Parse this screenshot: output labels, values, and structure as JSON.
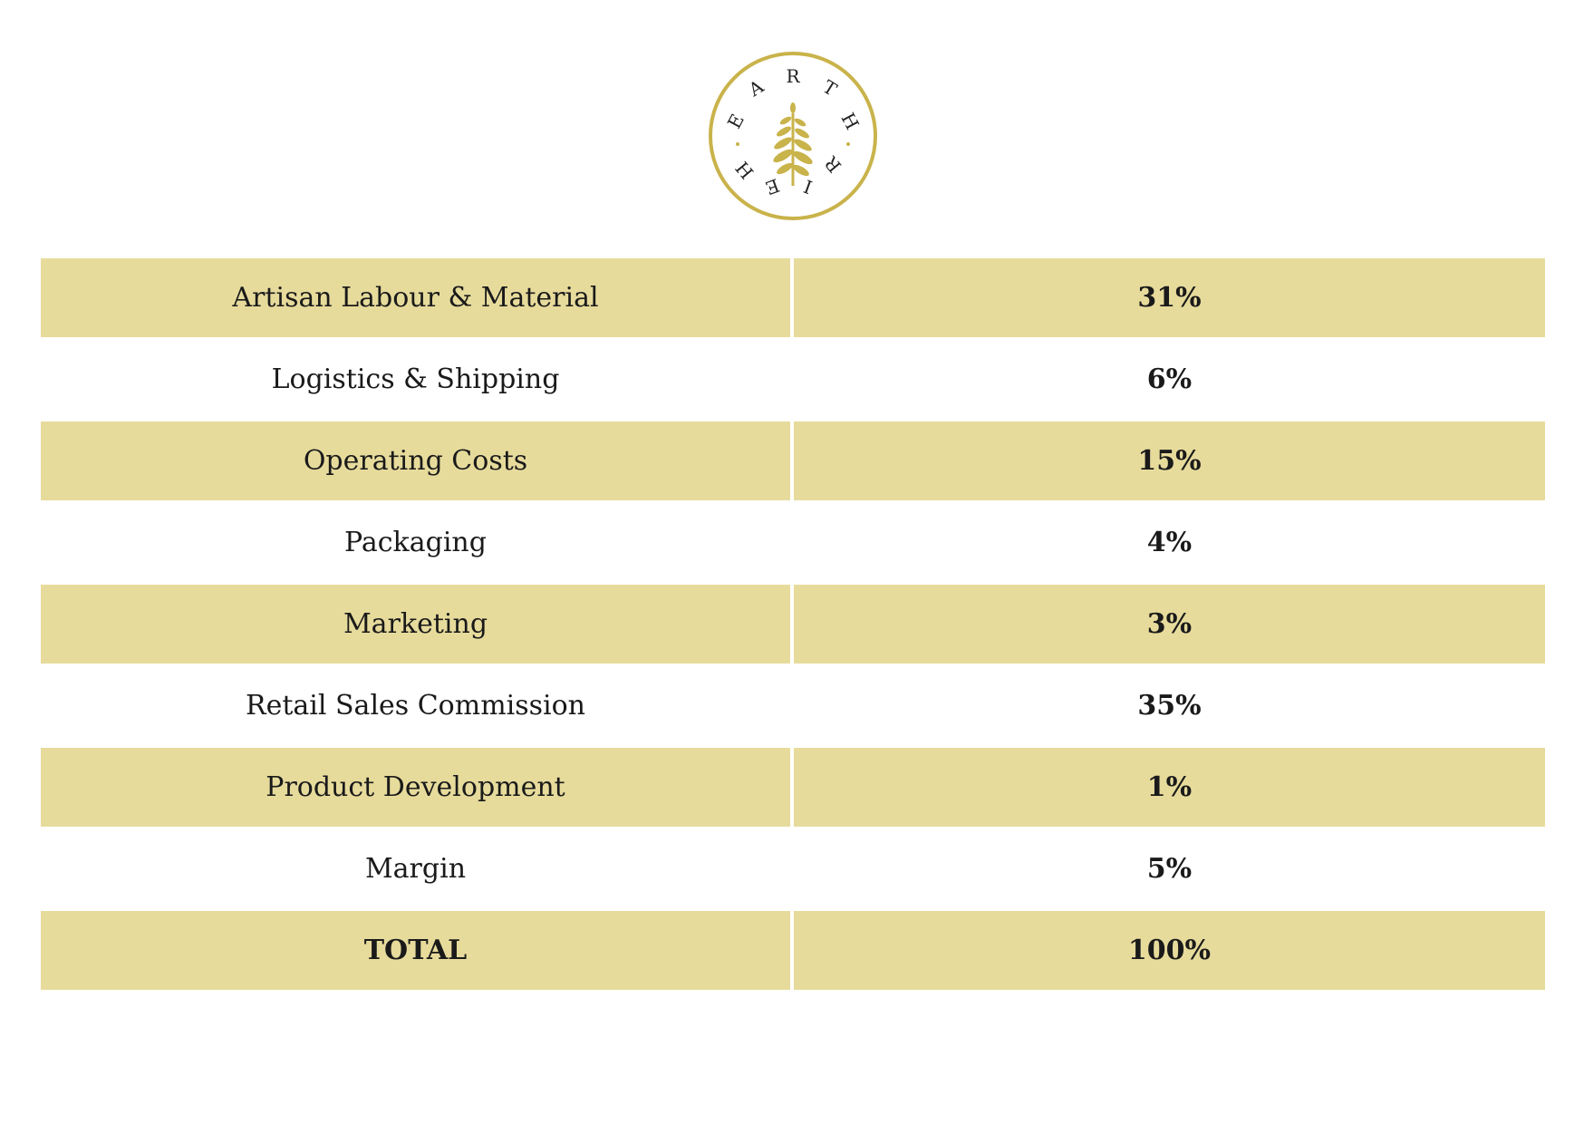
{
  "logo": {
    "top_text": "EARTH",
    "bottom_text": "HEIR",
    "ring_color": "#c9b34b",
    "icon": "fern-leaf-icon"
  },
  "colors": {
    "row_fill": "#e7db9c",
    "text": "#1a1a1a"
  },
  "rows": [
    {
      "label": "Artisan Labour & Material",
      "value": "31%"
    },
    {
      "label": "Logistics & Shipping",
      "value": "6%"
    },
    {
      "label": "Operating Costs",
      "value": "15%"
    },
    {
      "label": "Packaging",
      "value": "4%"
    },
    {
      "label": "Marketing",
      "value": "3%"
    },
    {
      "label": "Retail Sales Commission",
      "value": "35%"
    },
    {
      "label": "Product Development",
      "value": "1%"
    },
    {
      "label": "Margin",
      "value": "5%"
    },
    {
      "label": "TOTAL",
      "value": "100%"
    }
  ]
}
